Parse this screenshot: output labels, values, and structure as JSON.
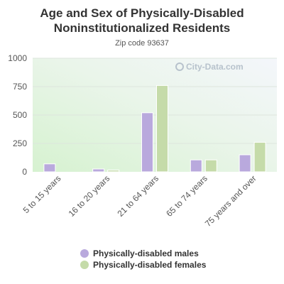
{
  "chart_data": {
    "type": "bar",
    "title_lines": [
      "Age and Sex of Physically-Disabled",
      "Noninstitutionalized Residents"
    ],
    "subtitle": "Zip code 93637",
    "categories": [
      "5 to 15 years",
      "16 to 20 years",
      "21 to 64 years",
      "65 to 74 years",
      "75 years and over"
    ],
    "series": [
      {
        "name": "Physically-disabled males",
        "color": "#b9a9dd",
        "values": [
          70,
          25,
          520,
          105,
          150
        ]
      },
      {
        "name": "Physically-disabled females",
        "color": "#c5dba9",
        "values": [
          0,
          15,
          760,
          105,
          260
        ]
      }
    ],
    "y_ticks": [
      "0",
      "250",
      "500",
      "750",
      "1000"
    ],
    "ylim": [
      0,
      1000
    ],
    "grid": true,
    "legend_position": "bottom"
  },
  "watermark": "City-Data.com"
}
